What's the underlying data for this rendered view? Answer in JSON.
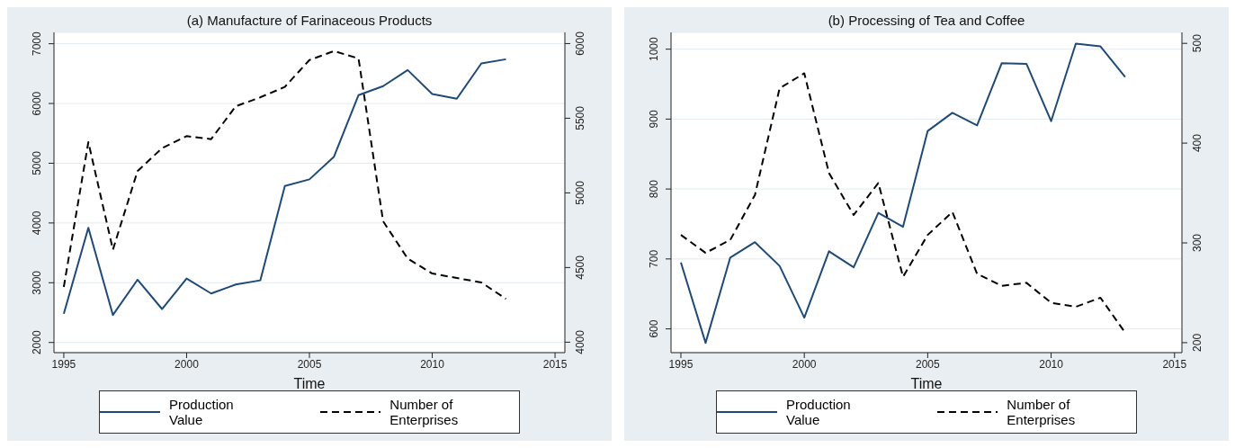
{
  "chart_data": [
    {
      "type": "line",
      "title": "(a) Manufacture of Farinaceous Products",
      "xlabel": "Time",
      "x": [
        1995,
        1996,
        1997,
        1998,
        1999,
        2000,
        2001,
        2002,
        2003,
        2004,
        2005,
        2006,
        2007,
        2008,
        2009,
        2010,
        2011,
        2012,
        2013
      ],
      "series": [
        {
          "name": "Production Value",
          "color": "#1f4a78",
          "line_style": "solid",
          "values": [
            2480,
            3920,
            2460,
            3050,
            2560,
            3070,
            2820,
            2970,
            3040,
            4620,
            4730,
            5110,
            6140,
            6290,
            6560,
            6160,
            6080,
            6670,
            6740
          ]
        },
        {
          "name": "Number of Enterprises",
          "color": "#000000",
          "line_style": "dashed",
          "axis": "y2",
          "values": [
            4370,
            5340,
            4620,
            5145,
            5300,
            5380,
            5360,
            5580,
            5640,
            5710,
            5890,
            5950,
            5900,
            4810,
            4560,
            4460,
            4430,
            4400,
            4290
          ]
        }
      ],
      "xlim": [
        1994.6,
        2015.4
      ],
      "xticks": [
        1995,
        2000,
        2005,
        2010,
        2015
      ],
      "ylim": [
        1830,
        7190
      ],
      "yticks": [
        2000,
        3000,
        4000,
        5000,
        6000,
        7000
      ],
      "y2lim": [
        3930,
        6075
      ],
      "y2ticks": [
        4000,
        4500,
        5000,
        5500,
        6000
      ],
      "grid": "y",
      "legend": "bottom"
    },
    {
      "type": "line",
      "title": "(b) Processing of Tea and Coffee",
      "xlabel": "Time",
      "x": [
        1995,
        1996,
        1997,
        1998,
        1999,
        2000,
        2001,
        2002,
        2003,
        2004,
        2005,
        2006,
        2007,
        2008,
        2009,
        2010,
        2011,
        2012,
        2013
      ],
      "series": [
        {
          "name": "Production Value",
          "color": "#1f4a78",
          "line_style": "solid",
          "values": [
            695,
            580,
            702,
            724,
            690,
            616,
            711,
            688,
            766,
            746,
            883,
            909,
            891,
            980,
            979,
            897,
            1008,
            1004,
            960
          ]
        },
        {
          "name": "Number of Enterprises",
          "color": "#000000",
          "line_style": "dashed",
          "axis": "y2",
          "values": [
            308,
            290,
            303,
            348,
            455,
            470,
            370,
            328,
            360,
            266,
            308,
            331,
            269,
            257,
            260,
            240,
            236,
            245,
            210
          ]
        }
      ],
      "xlim": [
        1994.6,
        2015.3
      ],
      "xticks": [
        1995,
        2000,
        2005,
        2010,
        2015
      ],
      "ylim": [
        566,
        1024
      ],
      "yticks": [
        600,
        700,
        800,
        900,
        1000
      ],
      "y2lim": [
        190,
        511
      ],
      "y2ticks": [
        200,
        300,
        400,
        500
      ],
      "grid": "y",
      "legend": "bottom"
    }
  ]
}
